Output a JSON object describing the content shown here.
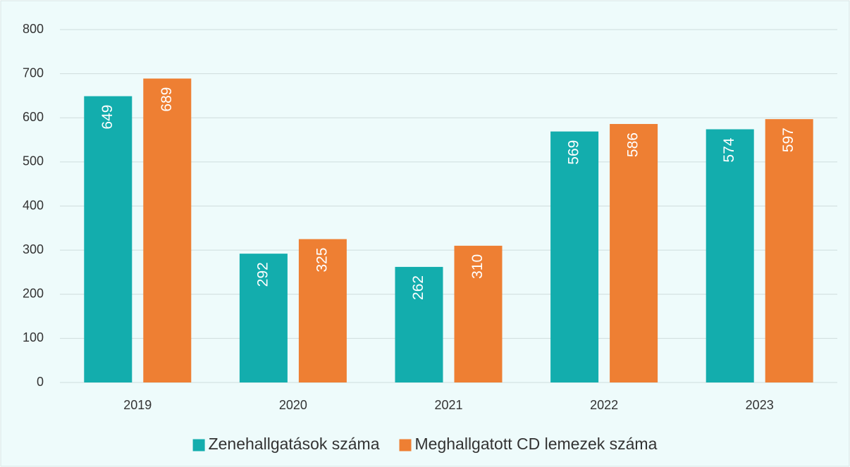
{
  "chart_data": {
    "type": "bar",
    "categories": [
      "2019",
      "2020",
      "2021",
      "2022",
      "2023"
    ],
    "series": [
      {
        "name": "Zenehallgatások száma",
        "color": "#13adad",
        "values": [
          649,
          292,
          262,
          569,
          574
        ]
      },
      {
        "name": "Meghallgatott CD lemezek száma",
        "color": "#ee7f33",
        "values": [
          689,
          325,
          310,
          586,
          597
        ]
      }
    ],
    "ylim": [
      0,
      800
    ],
    "yticks": [
      0,
      100,
      200,
      300,
      400,
      500,
      600,
      700,
      800
    ],
    "grid": true,
    "legend": "bottom"
  }
}
